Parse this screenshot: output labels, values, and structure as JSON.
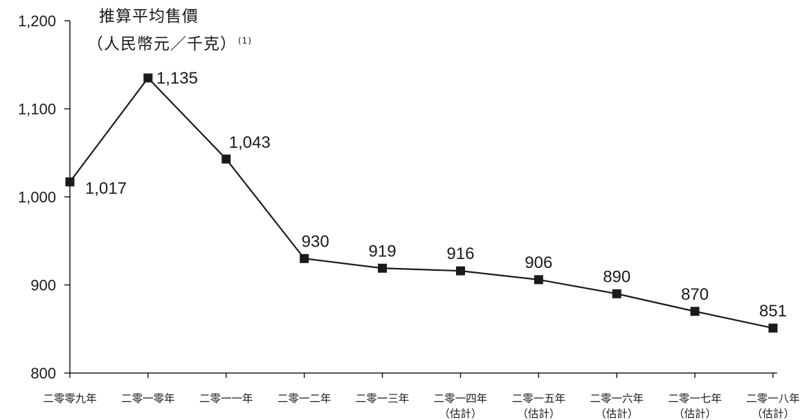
{
  "chart_data": {
    "type": "line",
    "ylabel_line1": "推算平均售價",
    "ylabel_line2": "（人民幣元／千克）",
    "ylabel_note": "(1)",
    "ylim": [
      800,
      1200
    ],
    "yticks": [
      800,
      900,
      1000,
      1100,
      1200
    ],
    "ytick_labels": [
      "800",
      "900",
      "1,000",
      "1,100",
      "1,200"
    ],
    "categories": [
      {
        "label": "二零零九年",
        "sublabel": ""
      },
      {
        "label": "二零一零年",
        "sublabel": ""
      },
      {
        "label": "二零一一年",
        "sublabel": ""
      },
      {
        "label": "二零一二年",
        "sublabel": ""
      },
      {
        "label": "二零一三年",
        "sublabel": ""
      },
      {
        "label": "二零一四年",
        "sublabel": "（估計）"
      },
      {
        "label": "二零一五年",
        "sublabel": "（估計）"
      },
      {
        "label": "二零一六年",
        "sublabel": "（估計）"
      },
      {
        "label": "二零一七年",
        "sublabel": "（估計）"
      },
      {
        "label": "二零一八年",
        "sublabel": "（估計）"
      }
    ],
    "values": [
      1017,
      1135,
      1043,
      930,
      919,
      916,
      906,
      890,
      870,
      851
    ],
    "value_labels": [
      "1,017",
      "1,135",
      "1,043",
      "930",
      "919",
      "916",
      "906",
      "890",
      "870",
      "851"
    ],
    "grid": false,
    "line_color": "#1a1a1a",
    "marker": "square"
  }
}
